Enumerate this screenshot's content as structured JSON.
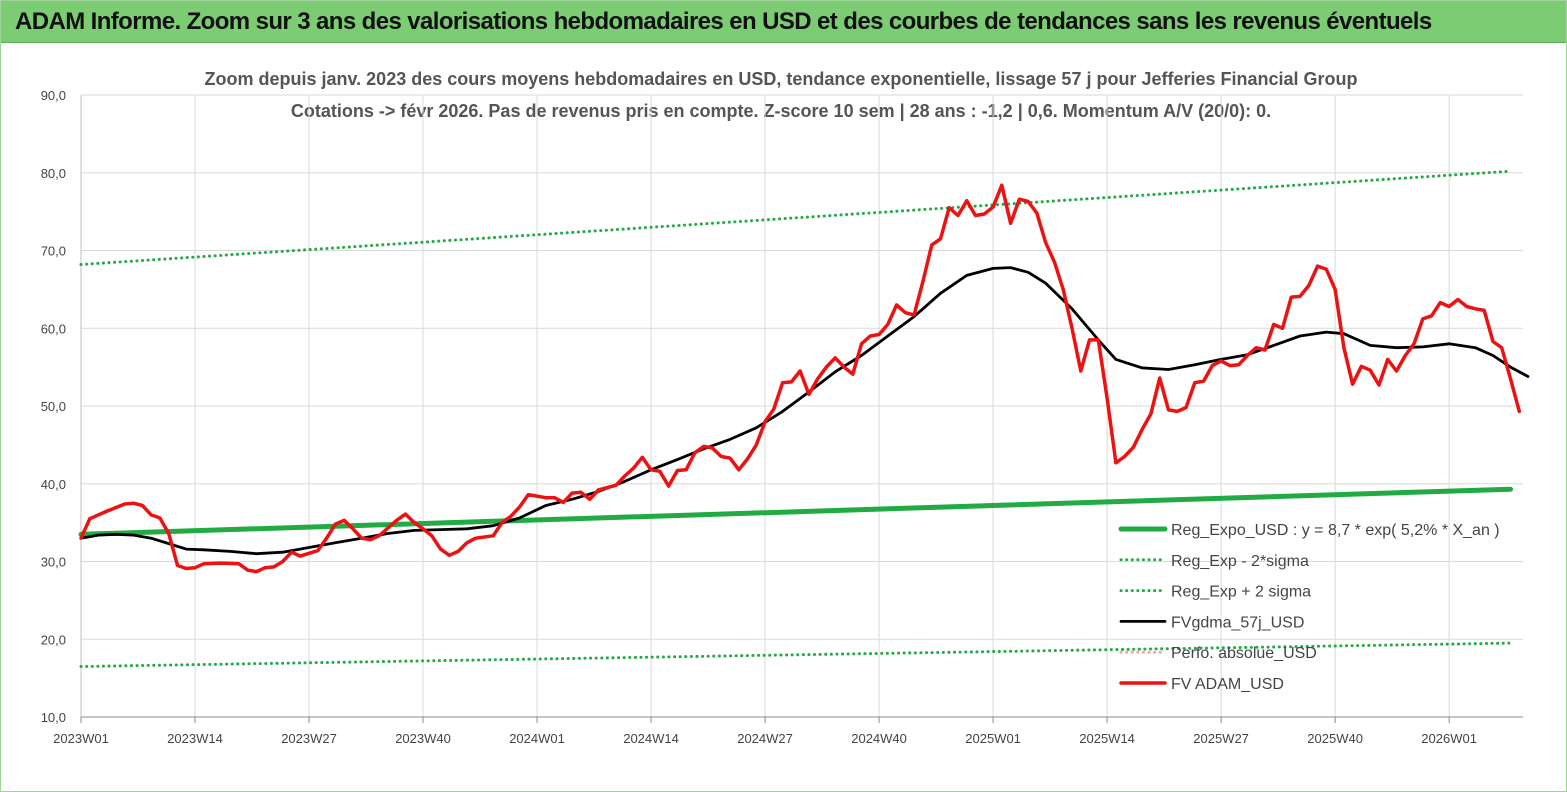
{
  "banner": {
    "title": "ADAM Informe. Zoom sur 3 ans des valorisations hebdomadaires en USD et des courbes de tendances sans les revenus éventuels"
  },
  "chart_data": {
    "type": "line",
    "title": "Zoom depuis janv. 2023 des cours moyens hebdomadaires en USD, tendance exponentielle, lissage 57 j pour Jefferies Financial Group",
    "subtitle": "Cotations -> févr 2026. Pas de revenus pris en compte. Z-score 10 sem | 28 ans : -1,2 | 0,6. Momentum A/V (20/0): 0.",
    "ylim": [
      10,
      90
    ],
    "y_ticks": [
      "10,0",
      "20,0",
      "30,0",
      "40,0",
      "50,0",
      "60,0",
      "70,0",
      "80,0",
      "90,0"
    ],
    "x_ticks": [
      "2023W01",
      "2023W14",
      "2023W27",
      "2023W40",
      "2024W01",
      "2024W14",
      "2024W27",
      "2024W40",
      "2025W01",
      "2025W14",
      "2025W27",
      "2025W40",
      "2026W01"
    ],
    "grid": true,
    "legend_position": "bottom-right",
    "series": [
      {
        "name": "Reg_Expo_USD : y = 8,7 * exp( 5,2% * X_an )",
        "color": "#22aa44",
        "style": "solid-thick",
        "points": [
          [
            "2023W01",
            33.5
          ],
          [
            "2026W08",
            39.3
          ]
        ]
      },
      {
        "name": "Reg_Exp - 2*sigma",
        "color": "#22aa44",
        "style": "dotted",
        "points": [
          [
            "2023W01",
            16.5
          ],
          [
            "2026W08",
            19.5
          ]
        ]
      },
      {
        "name": "Reg_Exp + 2 sigma",
        "color": "#22aa44",
        "style": "dotted",
        "points": [
          [
            "2023W01",
            68.2
          ],
          [
            "2026W08",
            80.2
          ]
        ]
      },
      {
        "name": "FVgdma_57j_USD",
        "color": "#000000",
        "style": "solid",
        "points": [
          [
            "2023W01",
            33.0
          ],
          [
            "2023W03",
            33.4
          ],
          [
            "2023W05",
            33.5
          ],
          [
            "2023W07",
            33.4
          ],
          [
            "2023W09",
            33.0
          ],
          [
            "2023W11",
            32.3
          ],
          [
            "2023W13",
            31.6
          ],
          [
            "2023W15",
            31.5
          ],
          [
            "2023W18",
            31.3
          ],
          [
            "2023W21",
            31.0
          ],
          [
            "2023W24",
            31.2
          ],
          [
            "2023W27",
            31.8
          ],
          [
            "2023W30",
            32.4
          ],
          [
            "2023W33",
            33.0
          ],
          [
            "2023W36",
            33.6
          ],
          [
            "2023W39",
            34.0
          ],
          [
            "2023W42",
            34.1
          ],
          [
            "2023W45",
            34.2
          ],
          [
            "2023W48",
            34.6
          ],
          [
            "2023W51",
            35.6
          ],
          [
            "2024W02",
            37.2
          ],
          [
            "2024W05",
            38.0
          ],
          [
            "2024W08",
            39.0
          ],
          [
            "2024W11",
            40.3
          ],
          [
            "2024W14",
            41.8
          ],
          [
            "2024W17",
            43.1
          ],
          [
            "2024W20",
            44.5
          ],
          [
            "2024W23",
            45.7
          ],
          [
            "2024W26",
            47.2
          ],
          [
            "2024W29",
            49.3
          ],
          [
            "2024W32",
            51.8
          ],
          [
            "2024W35",
            54.4
          ],
          [
            "2024W38",
            56.5
          ],
          [
            "2024W41",
            59.0
          ],
          [
            "2024W44",
            61.5
          ],
          [
            "2024W47",
            64.5
          ],
          [
            "2024W50",
            66.8
          ],
          [
            "2025W01",
            67.7
          ],
          [
            "2025W03",
            67.8
          ],
          [
            "2025W05",
            67.2
          ],
          [
            "2025W07",
            65.8
          ],
          [
            "2025W10",
            62.5
          ],
          [
            "2025W13",
            58.5
          ],
          [
            "2025W15",
            56.0
          ],
          [
            "2025W18",
            54.9
          ],
          [
            "2025W21",
            54.7
          ],
          [
            "2025W24",
            55.3
          ],
          [
            "2025W27",
            56.0
          ],
          [
            "2025W30",
            56.6
          ],
          [
            "2025W33",
            57.8
          ],
          [
            "2025W36",
            59.0
          ],
          [
            "2025W39",
            59.5
          ],
          [
            "2025W41",
            59.3
          ],
          [
            "2025W44",
            57.8
          ],
          [
            "2025W47",
            57.5
          ],
          [
            "2025W50",
            57.6
          ],
          [
            "2026W01",
            58.0
          ],
          [
            "2026W04",
            57.5
          ],
          [
            "2026W06",
            56.5
          ],
          [
            "2026W08",
            55.0
          ],
          [
            "2026W10",
            53.8
          ]
        ]
      },
      {
        "name": "Perfo. absolue_USD",
        "color": "#f4a6a0",
        "style": "dotted",
        "points": []
      },
      {
        "name": "FV ADAM_USD",
        "color": "#ee1111",
        "style": "solid-thick",
        "points": [
          [
            "2023W01",
            33.0
          ],
          [
            "2023W02",
            35.5
          ],
          [
            "2023W04",
            36.5
          ],
          [
            "2023W06",
            37.4
          ],
          [
            "2023W07",
            37.5
          ],
          [
            "2023W08",
            37.2
          ],
          [
            "2023W09",
            36.0
          ],
          [
            "2023W10",
            35.6
          ],
          [
            "2023W11",
            33.6
          ],
          [
            "2023W12",
            29.5
          ],
          [
            "2023W13",
            29.1
          ],
          [
            "2023W14",
            29.2
          ],
          [
            "2023W15",
            29.7
          ],
          [
            "2023W17",
            29.8
          ],
          [
            "2023W19",
            29.7
          ],
          [
            "2023W20",
            28.9
          ],
          [
            "2023W21",
            28.7
          ],
          [
            "2023W22",
            29.2
          ],
          [
            "2023W23",
            29.3
          ],
          [
            "2023W24",
            30.0
          ],
          [
            "2023W25",
            31.2
          ],
          [
            "2023W26",
            30.7
          ],
          [
            "2023W28",
            31.4
          ],
          [
            "2023W29",
            33.0
          ],
          [
            "2023W30",
            34.8
          ],
          [
            "2023W31",
            35.3
          ],
          [
            "2023W32",
            34.2
          ],
          [
            "2023W33",
            33.0
          ],
          [
            "2023W34",
            32.8
          ],
          [
            "2023W35",
            33.3
          ],
          [
            "2023W36",
            34.3
          ],
          [
            "2023W37",
            35.3
          ],
          [
            "2023W38",
            36.1
          ],
          [
            "2023W39",
            35.0
          ],
          [
            "2023W40",
            34.2
          ],
          [
            "2023W41",
            33.3
          ],
          [
            "2023W42",
            31.6
          ],
          [
            "2023W43",
            30.8
          ],
          [
            "2023W44",
            31.3
          ],
          [
            "2023W45",
            32.4
          ],
          [
            "2023W46",
            33.0
          ],
          [
            "2023W48",
            33.3
          ],
          [
            "2023W49",
            35.0
          ],
          [
            "2023W50",
            35.8
          ],
          [
            "2023W51",
            37.0
          ],
          [
            "2023W52",
            38.6
          ],
          [
            "2024W02",
            38.2
          ],
          [
            "2024W03",
            38.2
          ],
          [
            "2024W04",
            37.6
          ],
          [
            "2024W05",
            38.8
          ],
          [
            "2024W06",
            38.9
          ],
          [
            "2024W07",
            38.0
          ],
          [
            "2024W08",
            39.2
          ],
          [
            "2024W09",
            39.5
          ],
          [
            "2024W10",
            39.8
          ],
          [
            "2024W11",
            41.0
          ],
          [
            "2024W12",
            42.0
          ],
          [
            "2024W13",
            43.4
          ],
          [
            "2024W14",
            41.8
          ],
          [
            "2024W15",
            41.6
          ],
          [
            "2024W16",
            39.7
          ],
          [
            "2024W17",
            41.7
          ],
          [
            "2024W18",
            41.8
          ],
          [
            "2024W19",
            44.0
          ],
          [
            "2024W20",
            44.8
          ],
          [
            "2024W21",
            44.6
          ],
          [
            "2024W22",
            43.5
          ],
          [
            "2024W23",
            43.3
          ],
          [
            "2024W24",
            41.8
          ],
          [
            "2024W25",
            43.2
          ],
          [
            "2024W26",
            45.0
          ],
          [
            "2024W27",
            48.0
          ],
          [
            "2024W28",
            49.6
          ],
          [
            "2024W29",
            53.0
          ],
          [
            "2024W30",
            53.1
          ],
          [
            "2024W31",
            54.5
          ],
          [
            "2024W32",
            51.5
          ],
          [
            "2024W33",
            53.5
          ],
          [
            "2024W34",
            55.0
          ],
          [
            "2024W35",
            56.2
          ],
          [
            "2024W36",
            55.0
          ],
          [
            "2024W37",
            54.1
          ],
          [
            "2024W38",
            58.0
          ],
          [
            "2024W39",
            59.0
          ],
          [
            "2024W40",
            59.2
          ],
          [
            "2024W41",
            60.5
          ],
          [
            "2024W42",
            63.0
          ],
          [
            "2024W43",
            62.0
          ],
          [
            "2024W44",
            61.7
          ],
          [
            "2024W45",
            66.0
          ],
          [
            "2024W46",
            70.7
          ],
          [
            "2024W47",
            71.5
          ],
          [
            "2024W48",
            75.5
          ],
          [
            "2024W49",
            74.5
          ],
          [
            "2024W50",
            76.4
          ],
          [
            "2024W51",
            74.5
          ],
          [
            "2024W52",
            74.7
          ],
          [
            "2025W01",
            75.6
          ],
          [
            "2025W02",
            78.4
          ],
          [
            "2025W03",
            73.5
          ],
          [
            "2025W04",
            76.6
          ],
          [
            "2025W05",
            76.3
          ],
          [
            "2025W06",
            74.8
          ],
          [
            "2025W07",
            71.0
          ],
          [
            "2025W08",
            68.5
          ],
          [
            "2025W09",
            65.0
          ],
          [
            "2025W10",
            60.0
          ],
          [
            "2025W11",
            54.5
          ],
          [
            "2025W12",
            58.5
          ],
          [
            "2025W13",
            58.5
          ],
          [
            "2025W14",
            51.0
          ],
          [
            "2025W15",
            42.7
          ],
          [
            "2025W16",
            43.5
          ],
          [
            "2025W17",
            44.7
          ],
          [
            "2025W18",
            47.0
          ],
          [
            "2025W19",
            49.0
          ],
          [
            "2025W20",
            53.6
          ],
          [
            "2025W21",
            49.5
          ],
          [
            "2025W22",
            49.3
          ],
          [
            "2025W23",
            49.8
          ],
          [
            "2025W24",
            53.0
          ],
          [
            "2025W25",
            53.2
          ],
          [
            "2025W26",
            55.2
          ],
          [
            "2025W27",
            55.8
          ],
          [
            "2025W28",
            55.2
          ],
          [
            "2025W29",
            55.3
          ],
          [
            "2025W30",
            56.5
          ],
          [
            "2025W31",
            57.5
          ],
          [
            "2025W32",
            57.2
          ],
          [
            "2025W33",
            60.5
          ],
          [
            "2025W34",
            60.0
          ],
          [
            "2025W35",
            64.0
          ],
          [
            "2025W36",
            64.1
          ],
          [
            "2025W37",
            65.5
          ],
          [
            "2025W38",
            68.0
          ],
          [
            "2025W39",
            67.6
          ],
          [
            "2025W40",
            65.0
          ],
          [
            "2025W41",
            57.5
          ],
          [
            "2025W42",
            52.8
          ],
          [
            "2025W43",
            55.1
          ],
          [
            "2025W44",
            54.6
          ],
          [
            "2025W45",
            52.7
          ],
          [
            "2025W46",
            56.0
          ],
          [
            "2025W47",
            54.5
          ],
          [
            "2025W48",
            56.5
          ],
          [
            "2025W49",
            58.0
          ],
          [
            "2025W50",
            61.2
          ],
          [
            "2025W51",
            61.6
          ],
          [
            "2025W52",
            63.3
          ],
          [
            "2026W01",
            62.8
          ],
          [
            "2026W02",
            63.7
          ],
          [
            "2026W03",
            62.8
          ],
          [
            "2026W04",
            62.5
          ],
          [
            "2026W05",
            62.3
          ],
          [
            "2026W06",
            58.3
          ],
          [
            "2026W07",
            57.5
          ],
          [
            "2026W08",
            53.5
          ],
          [
            "2026W09",
            49.3
          ]
        ]
      }
    ]
  }
}
